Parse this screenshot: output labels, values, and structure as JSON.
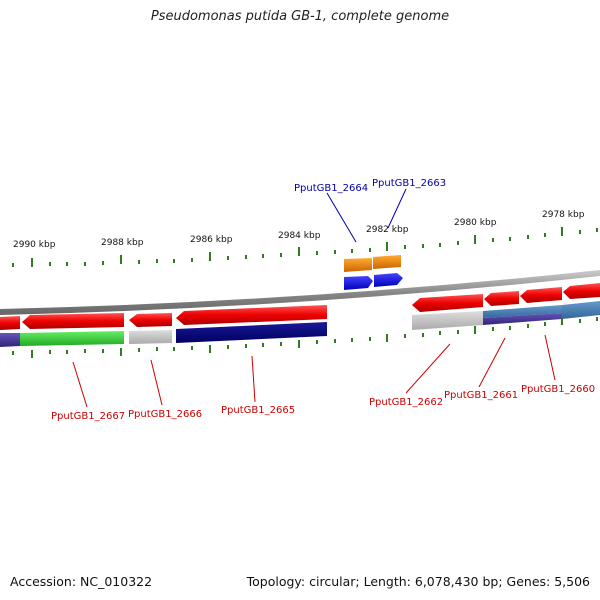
{
  "title": "Pseudomonas putida GB-1, complete genome",
  "footer": {
    "accession": "Accession: NC_010322",
    "summary": "Topology: circular; Length: 6,078,430 bp; Genes: 5,506"
  },
  "colors": {
    "backbone": "#8a8a8a",
    "tick": "#2e7d1f",
    "red_label": "#cc0000",
    "blue_label": "#0000aa",
    "gene_red": "#ee0000",
    "gene_orange": "#ee8800",
    "gene_blue": "#0000ee",
    "band_navy": "#000080",
    "band_green": "#33cc33",
    "band_gray": "#bbbbbb",
    "band_steel": "#4477aa",
    "band_purple": "#443399"
  },
  "kbp_labels": [
    "2990 kbp",
    "2988 kbp",
    "2986 kbp",
    "2984 kbp",
    "2982 kbp",
    "2980 kbp",
    "2978 kbp"
  ],
  "genes": {
    "g2667": "PputGB1_2667",
    "g2666": "PputGB1_2666",
    "g2665": "PputGB1_2665",
    "g2664": "PputGB1_2664",
    "g2663": "PputGB1_2663",
    "g2662": "PputGB1_2662",
    "g2661": "PputGB1_2661",
    "g2660": "PputGB1_2660"
  }
}
